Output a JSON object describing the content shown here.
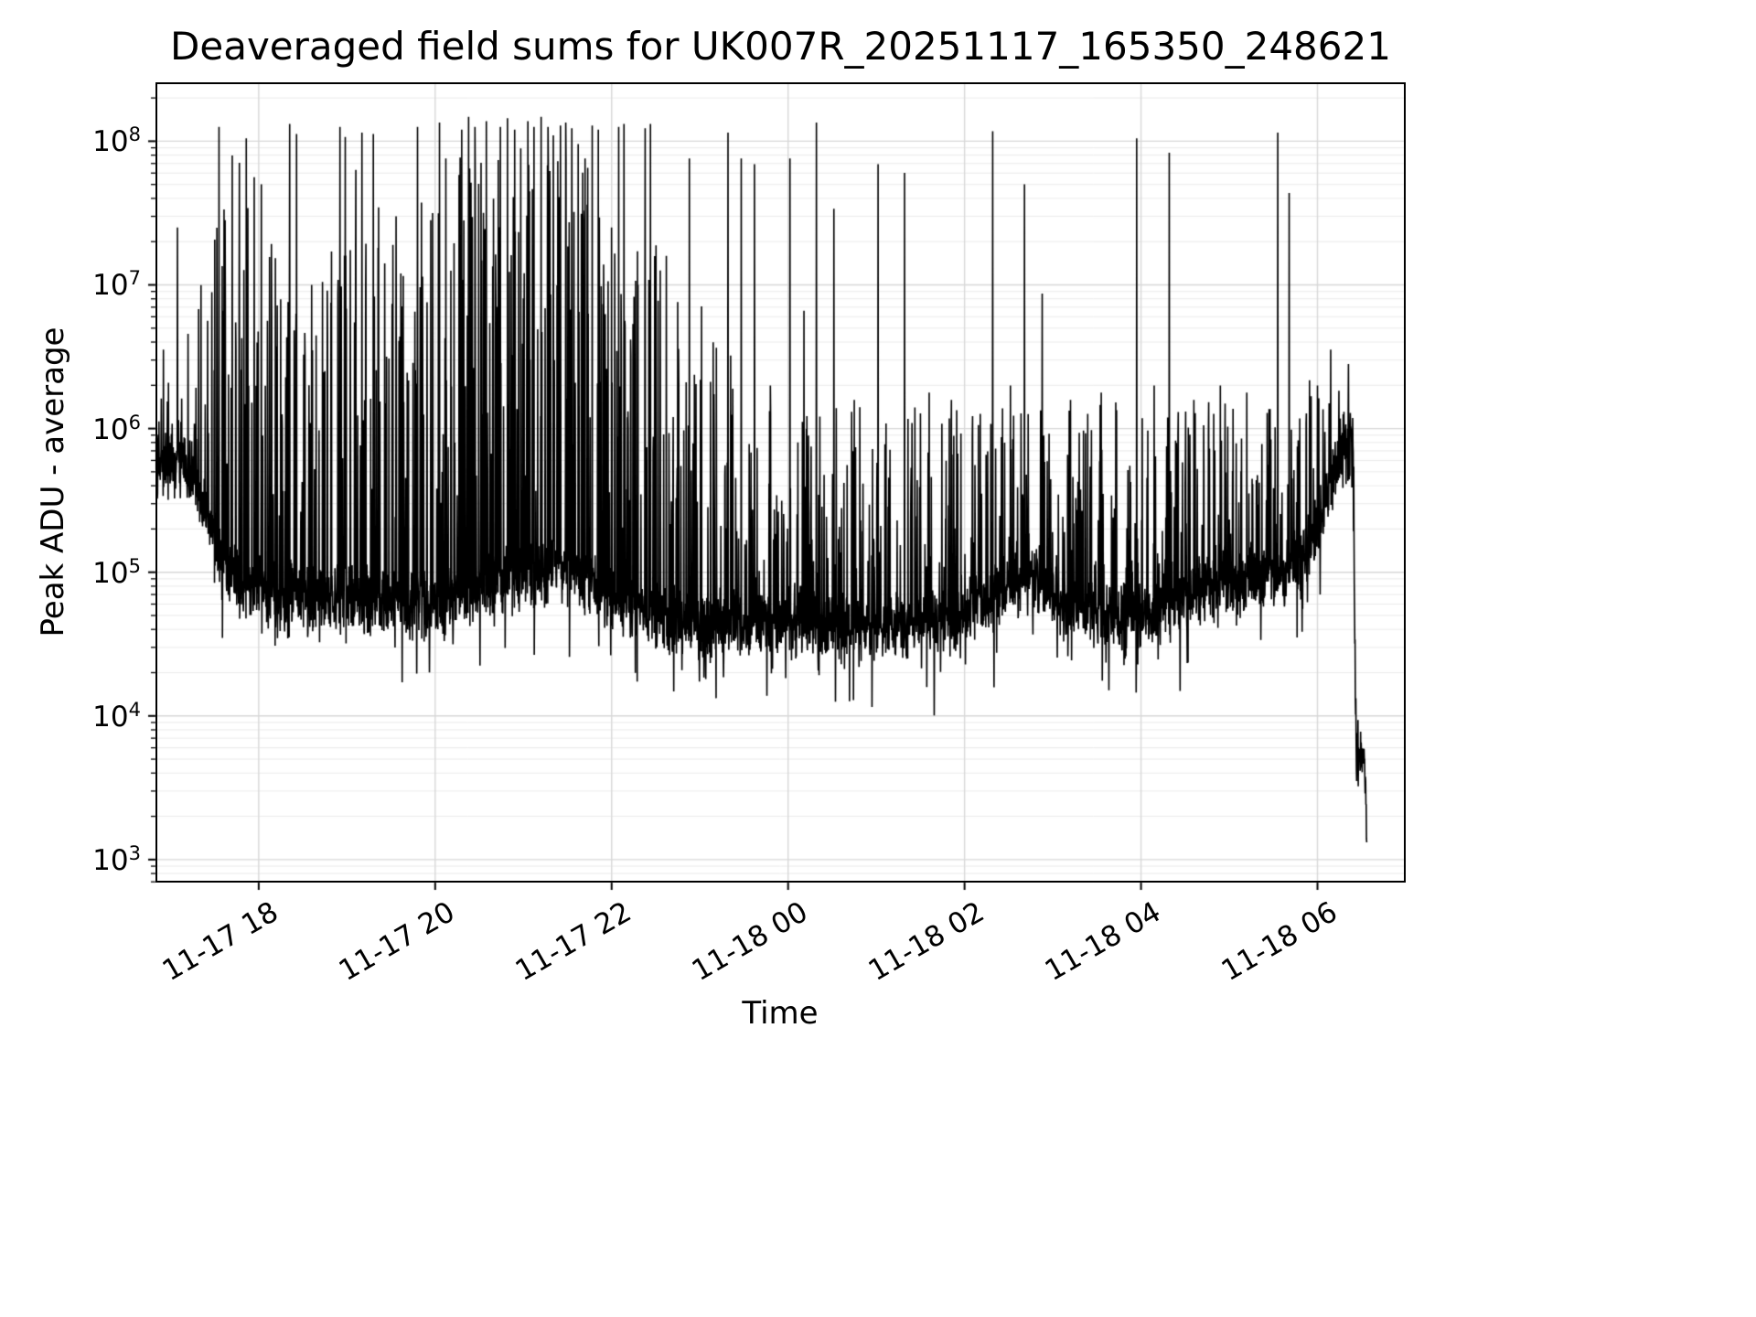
{
  "chart_data": {
    "type": "line",
    "title": "Deaveraged field sums for UK007R_20251117_165350_248621",
    "xlabel": "Time",
    "ylabel": "Peak ADU - average",
    "line_color": "#000000",
    "background_color": "#ffffff",
    "axes_border_color": "#000000",
    "grid": {
      "on": true,
      "major_color": "#d8d8d8",
      "minor_color": "#ebebeb"
    },
    "legend": {
      "visible": false
    },
    "x_axis": {
      "start_hours": 16.83,
      "end_hours": 31.0,
      "data_end_hours": 30.56,
      "ticks": [
        {
          "t": 18,
          "label": "11-17 18"
        },
        {
          "t": 20,
          "label": "11-17 20"
        },
        {
          "t": 22,
          "label": "11-17 22"
        },
        {
          "t": 24,
          "label": "11-18 00"
        },
        {
          "t": 26,
          "label": "11-18 02"
        },
        {
          "t": 28,
          "label": "11-18 04"
        },
        {
          "t": 30,
          "label": "11-18 06"
        }
      ]
    },
    "y_axis": {
      "scale": "log",
      "min_exp": 2.84,
      "max_exp": 8.41,
      "ticks_exp": [
        3,
        4,
        5,
        6,
        7,
        8
      ],
      "tick_label_base": "10"
    },
    "series": {
      "name": "peak-adu-minus-average",
      "sample_step_hours": 0.003,
      "noise_dex": 0.14,
      "dip_probability": 0.04,
      "seed": 20251117,
      "baseline_log10": [
        [
          16.83,
          5.72
        ],
        [
          17.0,
          5.76
        ],
        [
          17.15,
          5.8
        ],
        [
          17.3,
          5.55
        ],
        [
          17.5,
          5.25
        ],
        [
          17.7,
          5.0
        ],
        [
          17.9,
          4.9
        ],
        [
          18.2,
          4.85
        ],
        [
          18.6,
          4.85
        ],
        [
          19.0,
          4.82
        ],
        [
          19.4,
          4.8
        ],
        [
          19.8,
          4.78
        ],
        [
          20.2,
          4.8
        ],
        [
          20.6,
          4.9
        ],
        [
          21.0,
          4.95
        ],
        [
          21.4,
          5.05
        ],
        [
          21.7,
          4.95
        ],
        [
          22.0,
          4.82
        ],
        [
          22.4,
          4.72
        ],
        [
          22.8,
          4.66
        ],
        [
          23.2,
          4.62
        ],
        [
          23.6,
          4.64
        ],
        [
          24.0,
          4.66
        ],
        [
          24.4,
          4.62
        ],
        [
          24.8,
          4.62
        ],
        [
          25.2,
          4.63
        ],
        [
          25.6,
          4.64
        ],
        [
          26.0,
          4.7
        ],
        [
          26.4,
          4.88
        ],
        [
          26.8,
          4.95
        ],
        [
          27.1,
          4.8
        ],
        [
          27.4,
          4.7
        ],
        [
          27.8,
          4.68
        ],
        [
          28.2,
          4.72
        ],
        [
          28.6,
          4.85
        ],
        [
          29.0,
          4.92
        ],
        [
          29.4,
          4.98
        ],
        [
          29.8,
          5.05
        ],
        [
          30.05,
          5.35
        ],
        [
          30.2,
          5.75
        ],
        [
          30.32,
          5.95
        ],
        [
          30.4,
          5.9
        ],
        [
          30.44,
          3.72
        ],
        [
          30.5,
          3.7
        ],
        [
          30.54,
          3.68
        ],
        [
          30.56,
          3.12
        ]
      ],
      "spike_windows": [
        {
          "t0": 16.85,
          "t1": 17.3,
          "rate_per_hour": 25,
          "log10_min": 5.9,
          "log10_max": 6.6
        },
        {
          "t0": 17.3,
          "t1": 18.1,
          "rate_per_hour": 55,
          "log10_min": 5.4,
          "log10_max": 7.6
        },
        {
          "t0": 18.1,
          "t1": 19.35,
          "rate_per_hour": 55,
          "log10_min": 5.3,
          "log10_max": 7.3
        },
        {
          "t0": 19.35,
          "t1": 20.25,
          "rate_per_hour": 55,
          "log10_min": 5.3,
          "log10_max": 7.6
        },
        {
          "t0": 20.25,
          "t1": 21.9,
          "rate_per_hour": 85,
          "log10_min": 5.5,
          "log10_max": 7.9
        },
        {
          "t0": 21.9,
          "t1": 22.65,
          "rate_per_hour": 60,
          "log10_min": 5.3,
          "log10_max": 7.3
        },
        {
          "t0": 22.65,
          "t1": 23.4,
          "rate_per_hour": 50,
          "log10_min": 5.1,
          "log10_max": 6.6
        },
        {
          "t0": 23.4,
          "t1": 26.1,
          "rate_per_hour": 48,
          "log10_min": 4.95,
          "log10_max": 6.15
        },
        {
          "t0": 26.1,
          "t1": 29.9,
          "rate_per_hour": 50,
          "log10_min": 4.95,
          "log10_max": 6.2
        },
        {
          "t0": 29.9,
          "t1": 30.42,
          "rate_per_hour": 35,
          "log10_min": 5.6,
          "log10_max": 6.35
        }
      ],
      "major_spikes_log10": [
        [
          16.92,
          6.55
        ],
        [
          17.08,
          7.4
        ],
        [
          17.2,
          6.66
        ],
        [
          17.42,
          6.75
        ],
        [
          17.55,
          8.1
        ],
        [
          17.62,
          7.45
        ],
        [
          17.7,
          7.9
        ],
        [
          17.78,
          7.85
        ],
        [
          17.86,
          8.02
        ],
        [
          17.95,
          7.75
        ],
        [
          18.03,
          7.7
        ],
        [
          18.1,
          6.75
        ],
        [
          18.25,
          6.9
        ],
        [
          18.35,
          8.12
        ],
        [
          18.43,
          8.05
        ],
        [
          18.6,
          7.0
        ],
        [
          18.75,
          6.4
        ],
        [
          18.92,
          8.1
        ],
        [
          18.98,
          8.03
        ],
        [
          19.1,
          7.8
        ],
        [
          19.17,
          8.06
        ],
        [
          19.3,
          8.05
        ],
        [
          19.45,
          6.5
        ],
        [
          19.62,
          6.85
        ],
        [
          19.8,
          8.1
        ],
        [
          19.95,
          7.45
        ],
        [
          20.05,
          8.13
        ],
        [
          20.12,
          7.88
        ],
        [
          20.3,
          8.08
        ],
        [
          20.38,
          8.17
        ],
        [
          20.45,
          8.1
        ],
        [
          20.52,
          7.85
        ],
        [
          20.58,
          8.14
        ],
        [
          20.66,
          7.6
        ],
        [
          20.74,
          8.1
        ],
        [
          20.82,
          8.16
        ],
        [
          20.9,
          8.08
        ],
        [
          20.97,
          7.95
        ],
        [
          21.05,
          8.14
        ],
        [
          21.12,
          8.1
        ],
        [
          21.2,
          8.17
        ],
        [
          21.28,
          8.1
        ],
        [
          21.34,
          8.04
        ],
        [
          21.42,
          8.11
        ],
        [
          21.48,
          8.13
        ],
        [
          21.55,
          8.09
        ],
        [
          21.62,
          7.98
        ],
        [
          21.7,
          7.88
        ],
        [
          21.78,
          8.11
        ],
        [
          21.85,
          8.08
        ],
        [
          22.0,
          7.4
        ],
        [
          22.08,
          8.1
        ],
        [
          22.14,
          8.12
        ],
        [
          22.3,
          7.0
        ],
        [
          22.38,
          8.09
        ],
        [
          22.44,
          8.12
        ],
        [
          22.55,
          7.1
        ],
        [
          22.75,
          6.88
        ],
        [
          22.88,
          7.88
        ],
        [
          23.02,
          6.85
        ],
        [
          23.15,
          6.6
        ],
        [
          23.32,
          8.06
        ],
        [
          23.47,
          7.88
        ],
        [
          23.62,
          7.84
        ],
        [
          23.8,
          6.3
        ],
        [
          24.02,
          7.88
        ],
        [
          24.18,
          6.82
        ],
        [
          24.32,
          8.13
        ],
        [
          24.52,
          7.53
        ],
        [
          24.75,
          6.2
        ],
        [
          25.02,
          7.84
        ],
        [
          25.32,
          7.78
        ],
        [
          25.6,
          6.25
        ],
        [
          25.85,
          6.2
        ],
        [
          26.32,
          8.07
        ],
        [
          26.52,
          6.3
        ],
        [
          26.68,
          7.7
        ],
        [
          26.88,
          6.94
        ],
        [
          27.2,
          6.2
        ],
        [
          27.55,
          6.25
        ],
        [
          27.95,
          8.02
        ],
        [
          28.15,
          6.3
        ],
        [
          28.32,
          7.92
        ],
        [
          28.6,
          6.2
        ],
        [
          28.9,
          6.3
        ],
        [
          29.2,
          6.25
        ],
        [
          29.55,
          8.06
        ],
        [
          29.68,
          7.64
        ],
        [
          30.0,
          6.3
        ],
        [
          30.15,
          6.55
        ],
        [
          30.35,
          6.45
        ]
      ]
    }
  }
}
